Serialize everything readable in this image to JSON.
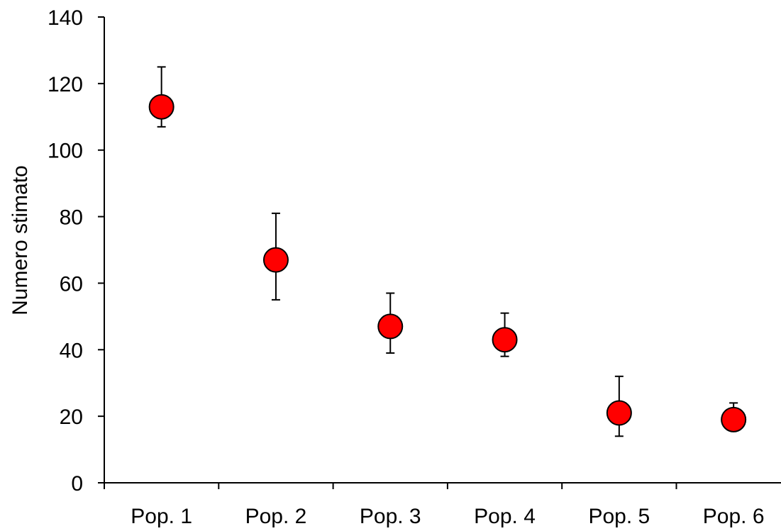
{
  "chart_data": {
    "type": "scatter",
    "title": "",
    "xlabel": "",
    "ylabel": "Numero stimato",
    "categories": [
      "Pop. 1",
      "Pop. 2",
      "Pop. 3",
      "Pop. 4",
      "Pop. 5",
      "Pop. 6"
    ],
    "series": [
      {
        "values": [
          113,
          67,
          47,
          43,
          21,
          19
        ],
        "error_low": [
          107,
          55,
          39,
          38,
          14,
          19
        ],
        "error_high": [
          125,
          81,
          57,
          51,
          32,
          24
        ],
        "color": "#ff0000"
      }
    ],
    "ylim": [
      0,
      140
    ],
    "yticks": [
      "0",
      "20",
      "40",
      "60",
      "80",
      "100",
      "120",
      "140"
    ],
    "grid": false,
    "legend": "none"
  }
}
